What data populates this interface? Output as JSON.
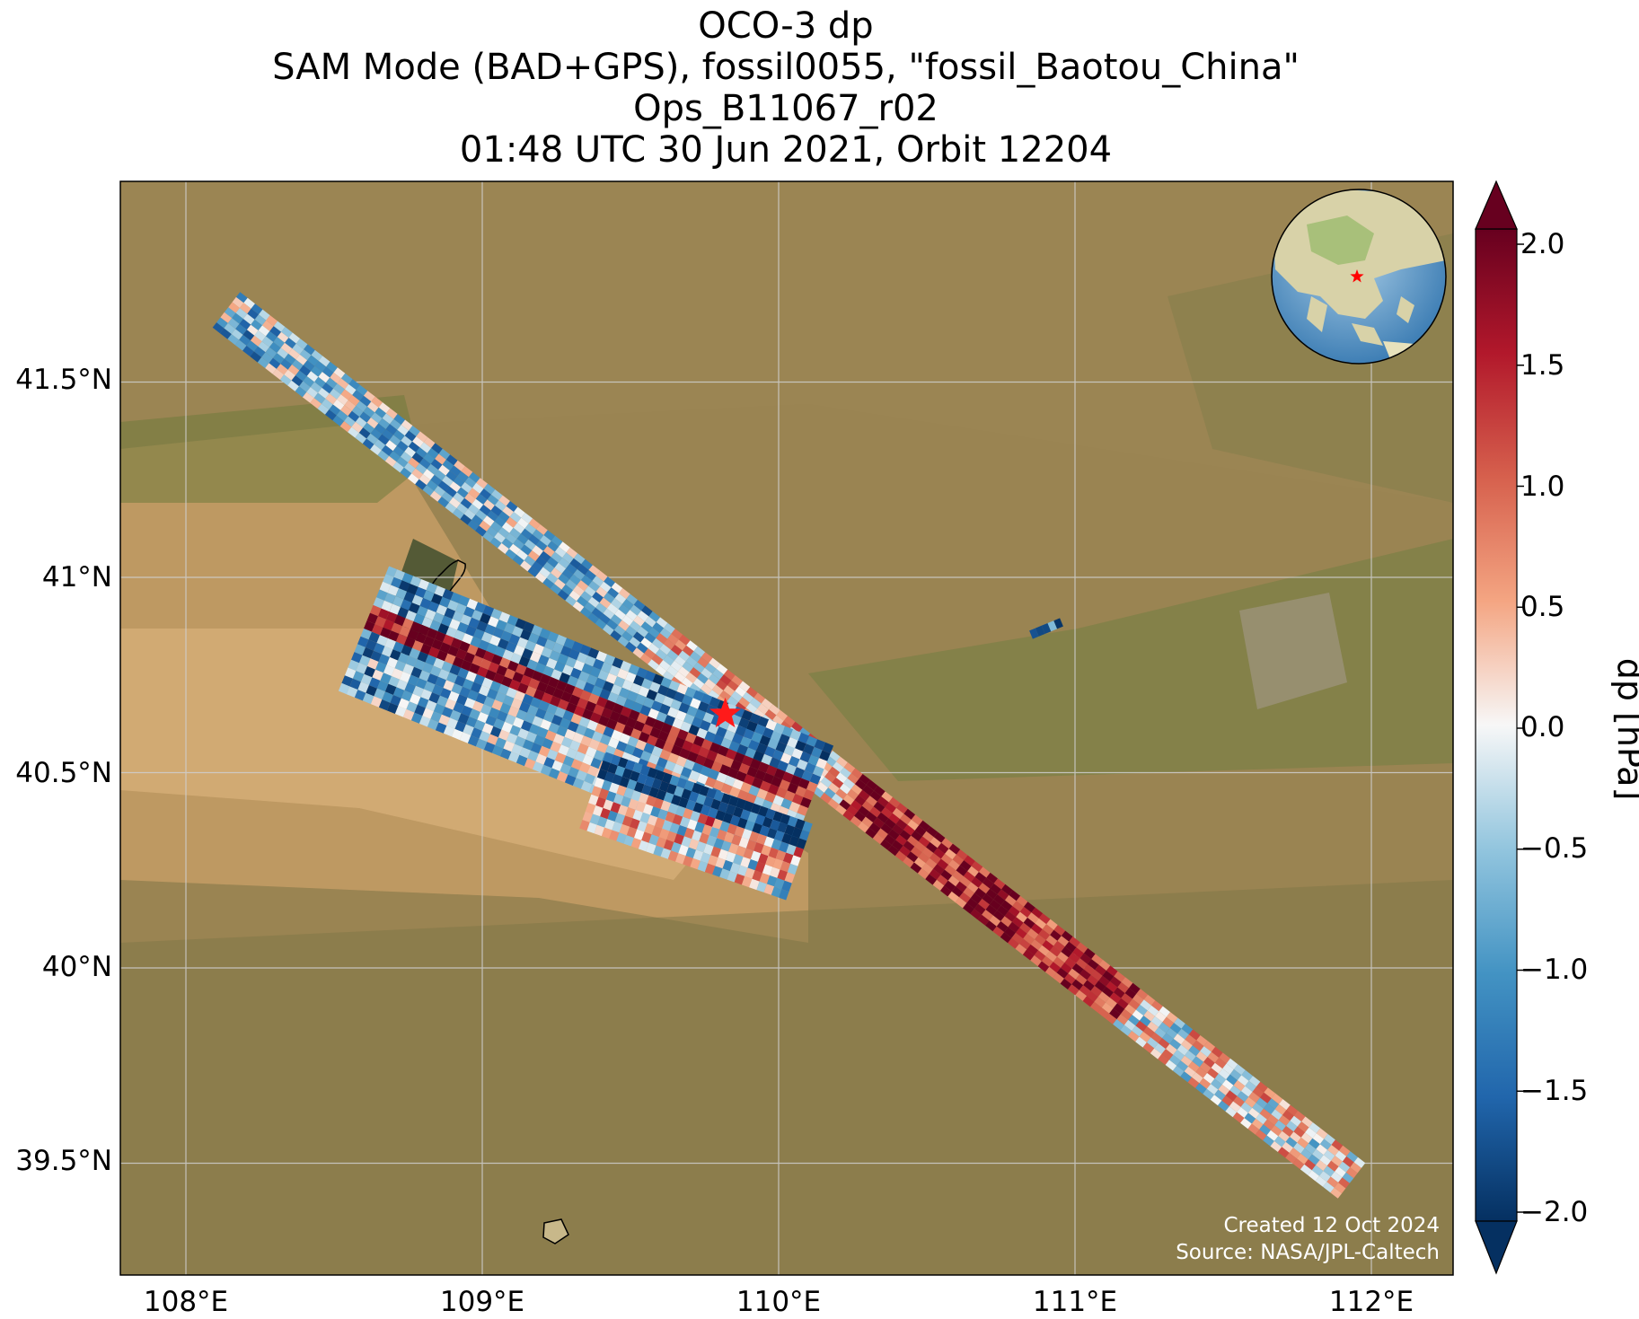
{
  "title": {
    "line1": "OCO-3 dp",
    "line2": "SAM Mode (BAD+GPS), fossil0055, \"fossil_Baotou_China\"",
    "line3": "Ops_B11067_r02",
    "line4": "01:48 UTC 30 Jun 2021, Orbit 12204"
  },
  "map": {
    "basemap": "satellite imagery",
    "lon_range": [
      107.8,
      112.3
    ],
    "lat_range": [
      39.2,
      41.95
    ],
    "x_ticks": [
      "108°E",
      "109°E",
      "110°E",
      "111°E",
      "112°E"
    ],
    "y_ticks": [
      "41.5°N",
      "41°N",
      "40.5°N",
      "40°N",
      "39.5°N"
    ],
    "target_marker": {
      "symbol": "red-star",
      "lon": 109.82,
      "lat": 40.65
    },
    "inset_globe": {
      "marker": "red-star",
      "region": "East Asia"
    }
  },
  "colorbar": {
    "label": "dp [hPa]",
    "ticks": [
      "2.0",
      "1.5",
      "1.0",
      "0.5",
      "0.0",
      "−0.5",
      "−1.0",
      "−1.5",
      "−2.0"
    ],
    "range": [
      -2.0,
      2.0
    ],
    "colormap": "RdBu_r",
    "extend": "both"
  },
  "credits": {
    "created": "Created 12 Oct 2024",
    "source": "Source: NASA/JPL-Caltech"
  },
  "colors": {
    "high": "#67001f",
    "mid": "#f7f7f7",
    "low": "#053061"
  }
}
